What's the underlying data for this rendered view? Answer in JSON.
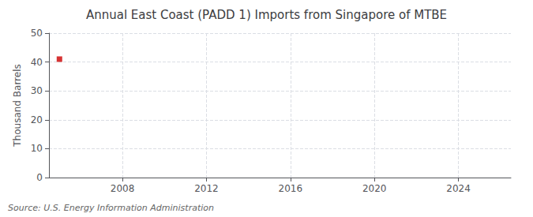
{
  "chart_data": {
    "type": "scatter",
    "title": "Annual East Coast (PADD 1) Imports from Singapore of MTBE",
    "ylabel": "Thousand Barrels",
    "source": "Source: U.S. Energy Information Administration",
    "x": [
      2005
    ],
    "values": [
      41
    ],
    "color": "#cc0000",
    "marker": "square",
    "xlim": [
      2004.5,
      2026.5
    ],
    "ylim": [
      0,
      50
    ],
    "xticks": [
      2008,
      2012,
      2016,
      2020,
      2024
    ],
    "yticks": [
      0,
      10,
      20,
      30,
      40,
      50
    ],
    "grid": true
  }
}
